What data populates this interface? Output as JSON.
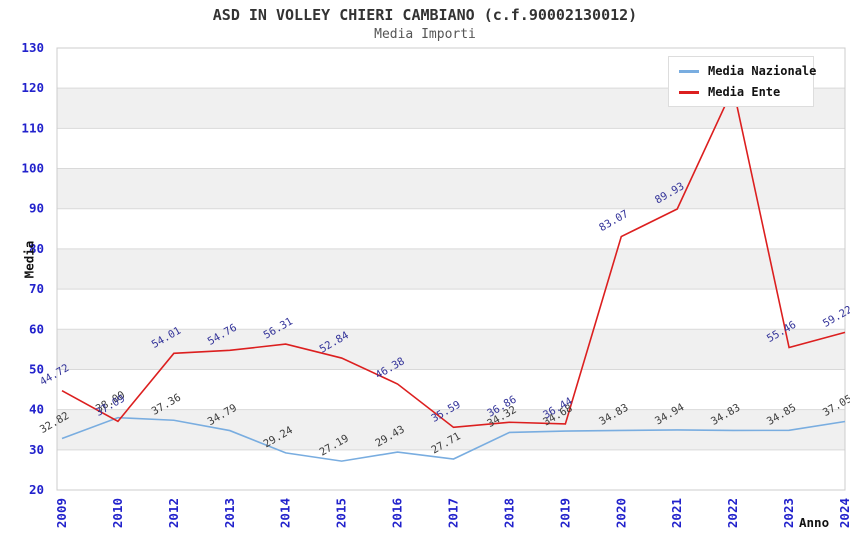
{
  "header": {
    "title": "ASD IN VOLLEY CHIERI CAMBIANO (c.f.90002130012)",
    "subtitle": "Media Importi"
  },
  "legend": {
    "position": "top-right-inside",
    "items": [
      {
        "label": "Media Nazionale",
        "color": "#79ade0"
      },
      {
        "label": "Media Ente",
        "color": "#dc1f1f"
      }
    ]
  },
  "style": {
    "band_gray": "#f0f0f0",
    "band_white": "#ffffff",
    "grid_color": "#d9d9d9",
    "border_color": "#cccccc",
    "tick_color": "#2222cc",
    "title_color": "#333333",
    "subtitle_color": "#555555"
  },
  "chart_data": {
    "type": "line",
    "title": "ASD IN VOLLEY CHIERI CAMBIANO (c.f.90002130012)",
    "subtitle": "Media Importi",
    "xlabel": "Anno",
    "ylabel": "Media",
    "ylim": [
      20,
      130
    ],
    "ytick_step": 10,
    "grid": "horizontal-bands-alternating",
    "legend_position": "top-right-inside",
    "categories": [
      "2009",
      "2010",
      "2012",
      "2013",
      "2014",
      "2015",
      "2016",
      "2017",
      "2018",
      "2019",
      "2020",
      "2021",
      "2022",
      "2023",
      "2024"
    ],
    "series": [
      {
        "name": "Media Nazionale",
        "color": "#79ade0",
        "label_color": "#3c3c3c",
        "values": [
          32.82,
          38.0,
          37.36,
          34.79,
          29.24,
          27.19,
          29.43,
          27.71,
          34.32,
          34.68,
          34.83,
          34.94,
          34.83,
          34.85,
          37.05
        ],
        "labels": [
          "32.82",
          "38.00",
          "37.36",
          "34.79",
          "29.24",
          "27.19",
          "29.43",
          "27.71",
          "34.32",
          "34.68",
          "34.83",
          "34.94",
          "34.83",
          "34.85",
          "37.05"
        ]
      },
      {
        "name": "Media Ente",
        "color": "#dc1f1f",
        "label_color": "#333399",
        "values": [
          44.72,
          37.09,
          54.01,
          54.76,
          56.31,
          52.84,
          46.38,
          35.59,
          36.86,
          36.44,
          83.07,
          89.93,
          120,
          55.46,
          59.22
        ],
        "labels": [
          "44.72",
          "37.09",
          "54.01",
          "54.76",
          "56.31",
          "52.84",
          "46.38",
          "35.59",
          "36.86",
          "36.44",
          "83.07",
          "89.93",
          "",
          "55.46",
          "59.22"
        ],
        "note": "2022 peak value label hidden behind legend; 120 estimated from gridlines"
      }
    ]
  }
}
